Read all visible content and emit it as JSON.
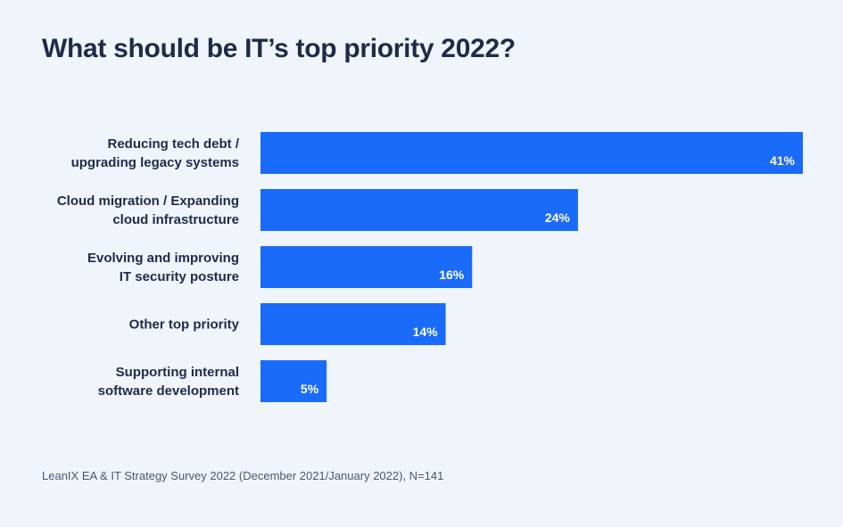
{
  "chart_data": {
    "type": "bar",
    "orientation": "horizontal",
    "title": "What should be IT’s top priority 2022?",
    "categories": [
      [
        "Reducing tech debt /",
        "upgrading legacy systems"
      ],
      [
        "Cloud migration / Expanding",
        "cloud infrastructure"
      ],
      [
        "Evolving and improving",
        "IT security posture"
      ],
      [
        "Other top priority"
      ],
      [
        "Supporting internal",
        "software development"
      ]
    ],
    "values": [
      41,
      24,
      16,
      14,
      5
    ],
    "value_labels": [
      "41%",
      "24%",
      "16%",
      "14%",
      "5%"
    ],
    "unit": "%",
    "xlim": [
      0,
      41
    ],
    "bar_color": "#1a6bfa",
    "grid": false,
    "legend": "none"
  },
  "source": "LeanIX EA & IT Strategy Survey 2022 (December 2021/January 2022), N=141"
}
